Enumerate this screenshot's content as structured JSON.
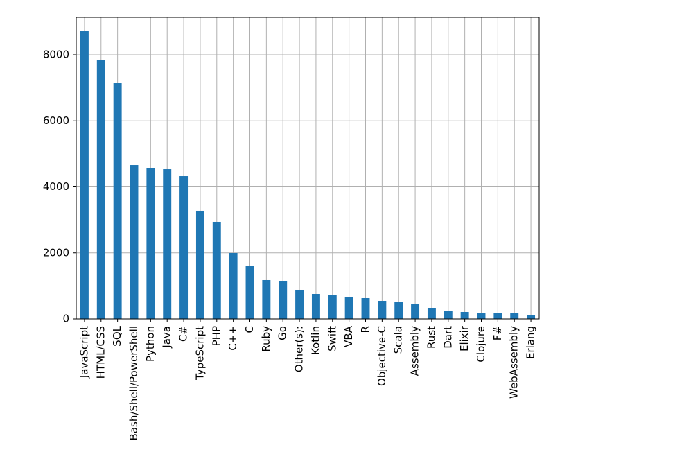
{
  "chart_data": {
    "type": "bar",
    "categories": [
      "JavaScript",
      "HTML/CSS",
      "SQL",
      "Bash/Shell/PowerShell",
      "Python",
      "Java",
      "C#",
      "TypeScript",
      "PHP",
      "C++",
      "C",
      "Ruby",
      "Go",
      "Other(s):",
      "Kotlin",
      "Swift",
      "VBA",
      "R",
      "Objective-C",
      "Scala",
      "Assembly",
      "Rust",
      "Dart",
      "Elixir",
      "Clojure",
      "F#",
      "WebAssembly",
      "Erlang"
    ],
    "values": [
      8735,
      7853,
      7139,
      4661,
      4577,
      4535,
      4325,
      3276,
      2940,
      1995,
      1596,
      1176,
      1134,
      882,
      756,
      714,
      672,
      630,
      546,
      504,
      462,
      336,
      252,
      210,
      168,
      168,
      168,
      126
    ],
    "color": "#1f77b4",
    "ylim": [
      0,
      9134
    ],
    "yticks": [
      0,
      2000,
      4000,
      6000,
      8000
    ],
    "grid": true
  }
}
